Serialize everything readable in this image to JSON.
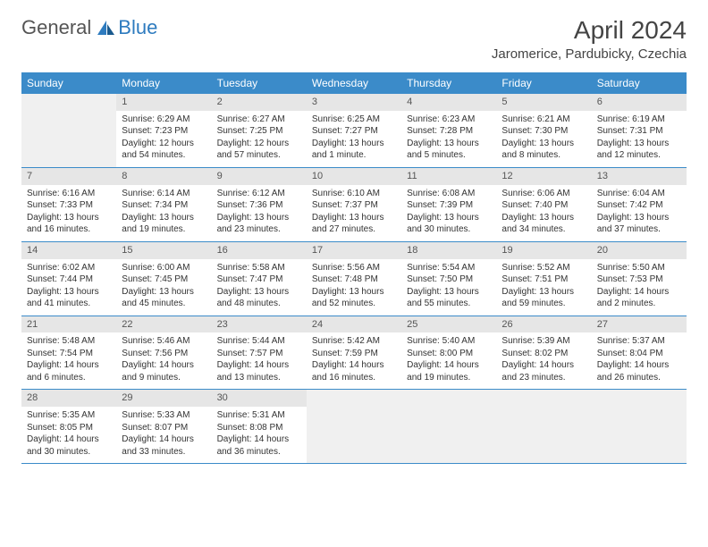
{
  "brand": {
    "text1": "General",
    "text2": "Blue"
  },
  "title": "April 2024",
  "location": "Jaromerice, Pardubicky, Czechia",
  "colors": {
    "header_bg": "#3b8bc9",
    "header_text": "#ffffff",
    "daynum_bg": "#e6e6e6",
    "empty_bg": "#f0f0f0",
    "border": "#3b8bc9"
  },
  "weekdays": [
    "Sunday",
    "Monday",
    "Tuesday",
    "Wednesday",
    "Thursday",
    "Friday",
    "Saturday"
  ],
  "weeks": [
    [
      null,
      {
        "n": "1",
        "sr": "6:29 AM",
        "ss": "7:23 PM",
        "dl": "12 hours and 54 minutes."
      },
      {
        "n": "2",
        "sr": "6:27 AM",
        "ss": "7:25 PM",
        "dl": "12 hours and 57 minutes."
      },
      {
        "n": "3",
        "sr": "6:25 AM",
        "ss": "7:27 PM",
        "dl": "13 hours and 1 minute."
      },
      {
        "n": "4",
        "sr": "6:23 AM",
        "ss": "7:28 PM",
        "dl": "13 hours and 5 minutes."
      },
      {
        "n": "5",
        "sr": "6:21 AM",
        "ss": "7:30 PM",
        "dl": "13 hours and 8 minutes."
      },
      {
        "n": "6",
        "sr": "6:19 AM",
        "ss": "7:31 PM",
        "dl": "13 hours and 12 minutes."
      }
    ],
    [
      {
        "n": "7",
        "sr": "6:16 AM",
        "ss": "7:33 PM",
        "dl": "13 hours and 16 minutes."
      },
      {
        "n": "8",
        "sr": "6:14 AM",
        "ss": "7:34 PM",
        "dl": "13 hours and 19 minutes."
      },
      {
        "n": "9",
        "sr": "6:12 AM",
        "ss": "7:36 PM",
        "dl": "13 hours and 23 minutes."
      },
      {
        "n": "10",
        "sr": "6:10 AM",
        "ss": "7:37 PM",
        "dl": "13 hours and 27 minutes."
      },
      {
        "n": "11",
        "sr": "6:08 AM",
        "ss": "7:39 PM",
        "dl": "13 hours and 30 minutes."
      },
      {
        "n": "12",
        "sr": "6:06 AM",
        "ss": "7:40 PM",
        "dl": "13 hours and 34 minutes."
      },
      {
        "n": "13",
        "sr": "6:04 AM",
        "ss": "7:42 PM",
        "dl": "13 hours and 37 minutes."
      }
    ],
    [
      {
        "n": "14",
        "sr": "6:02 AM",
        "ss": "7:44 PM",
        "dl": "13 hours and 41 minutes."
      },
      {
        "n": "15",
        "sr": "6:00 AM",
        "ss": "7:45 PM",
        "dl": "13 hours and 45 minutes."
      },
      {
        "n": "16",
        "sr": "5:58 AM",
        "ss": "7:47 PM",
        "dl": "13 hours and 48 minutes."
      },
      {
        "n": "17",
        "sr": "5:56 AM",
        "ss": "7:48 PM",
        "dl": "13 hours and 52 minutes."
      },
      {
        "n": "18",
        "sr": "5:54 AM",
        "ss": "7:50 PM",
        "dl": "13 hours and 55 minutes."
      },
      {
        "n": "19",
        "sr": "5:52 AM",
        "ss": "7:51 PM",
        "dl": "13 hours and 59 minutes."
      },
      {
        "n": "20",
        "sr": "5:50 AM",
        "ss": "7:53 PM",
        "dl": "14 hours and 2 minutes."
      }
    ],
    [
      {
        "n": "21",
        "sr": "5:48 AM",
        "ss": "7:54 PM",
        "dl": "14 hours and 6 minutes."
      },
      {
        "n": "22",
        "sr": "5:46 AM",
        "ss": "7:56 PM",
        "dl": "14 hours and 9 minutes."
      },
      {
        "n": "23",
        "sr": "5:44 AM",
        "ss": "7:57 PM",
        "dl": "14 hours and 13 minutes."
      },
      {
        "n": "24",
        "sr": "5:42 AM",
        "ss": "7:59 PM",
        "dl": "14 hours and 16 minutes."
      },
      {
        "n": "25",
        "sr": "5:40 AM",
        "ss": "8:00 PM",
        "dl": "14 hours and 19 minutes."
      },
      {
        "n": "26",
        "sr": "5:39 AM",
        "ss": "8:02 PM",
        "dl": "14 hours and 23 minutes."
      },
      {
        "n": "27",
        "sr": "5:37 AM",
        "ss": "8:04 PM",
        "dl": "14 hours and 26 minutes."
      }
    ],
    [
      {
        "n": "28",
        "sr": "5:35 AM",
        "ss": "8:05 PM",
        "dl": "14 hours and 30 minutes."
      },
      {
        "n": "29",
        "sr": "5:33 AM",
        "ss": "8:07 PM",
        "dl": "14 hours and 33 minutes."
      },
      {
        "n": "30",
        "sr": "5:31 AM",
        "ss": "8:08 PM",
        "dl": "14 hours and 36 minutes."
      },
      null,
      null,
      null,
      null
    ]
  ],
  "labels": {
    "sunrise": "Sunrise:",
    "sunset": "Sunset:",
    "daylight": "Daylight:"
  }
}
